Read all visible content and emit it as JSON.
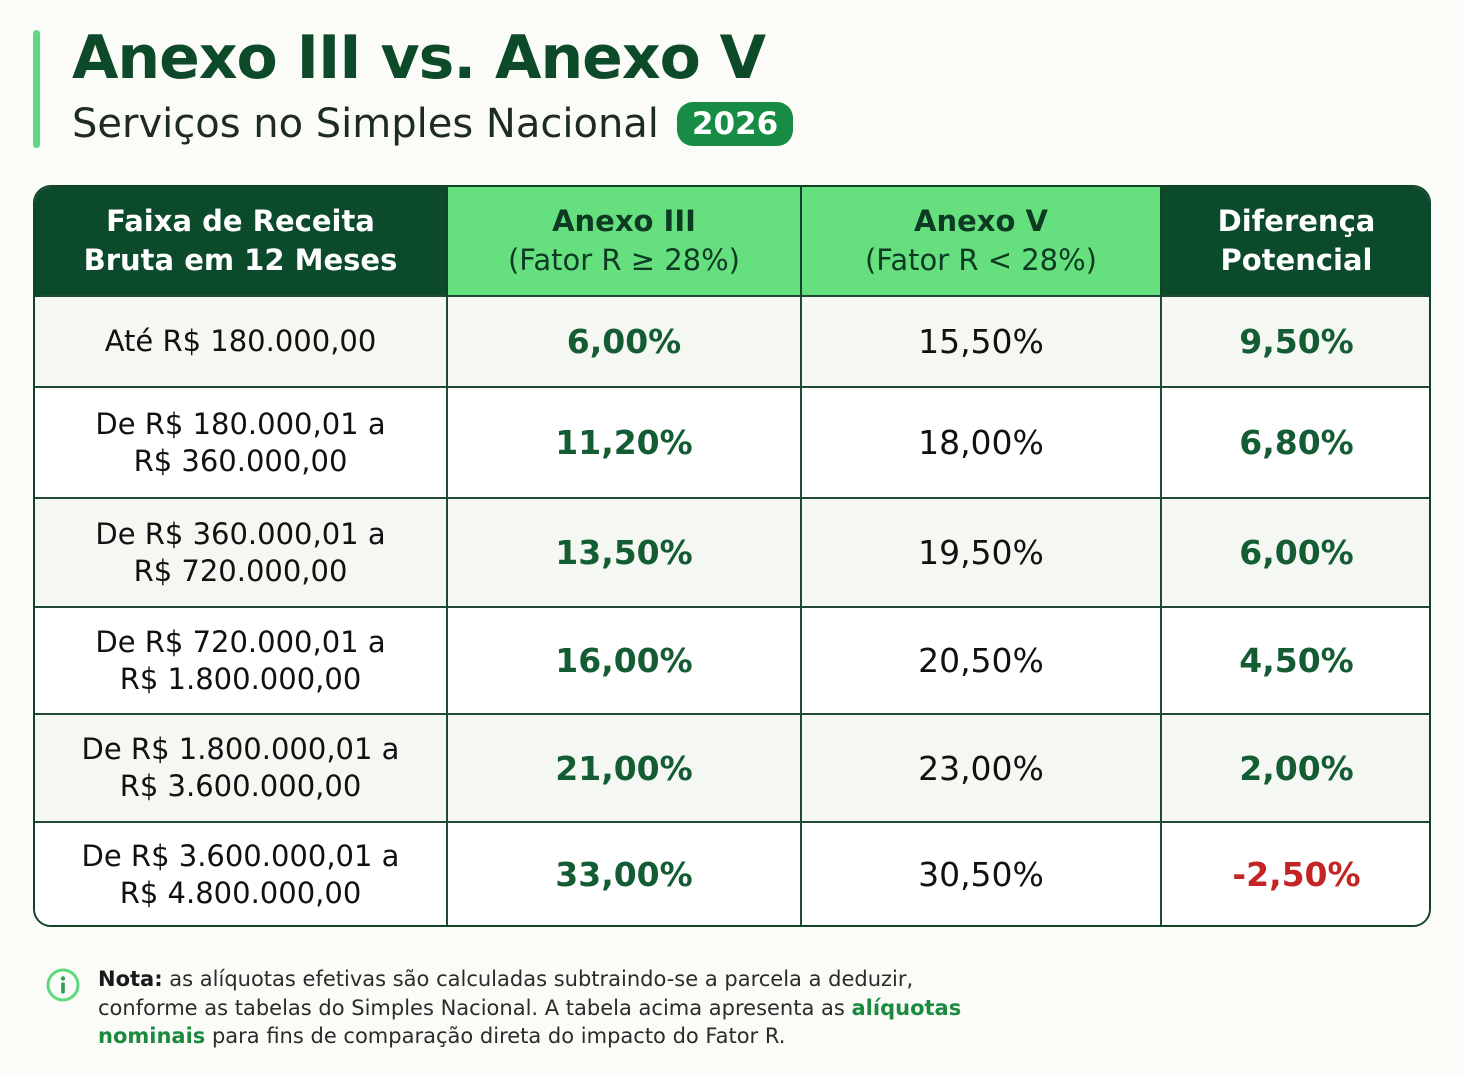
{
  "header": {
    "title": "Anexo III vs. Anexo V",
    "subtitle": "Serviços no Simples Nacional",
    "year_badge": "2026"
  },
  "colors": {
    "dark_green": "#0b4a2b",
    "light_green": "#66e07f",
    "value_green": "#145c33",
    "negative_red": "#c42424",
    "badge_green": "#178c45"
  },
  "table": {
    "headers": {
      "range_line1": "Faixa de Receita",
      "range_line2": "Bruta em 12 Meses",
      "anexo3_line1": "Anexo III",
      "anexo3_line2": "(Fator R ≥ 28%)",
      "anexo5_line1": "Anexo V",
      "anexo5_line2": "(Fator R < 28%)",
      "diff_line1": "Diferença",
      "diff_line2": "Potencial"
    },
    "rows": [
      {
        "range_line1": "Até R$ 180.000,00",
        "range_line2": "",
        "anexo3": "6,00%",
        "anexo5": "15,50%",
        "diff": "9,50%"
      },
      {
        "range_line1": "De R$ 180.000,01 a",
        "range_line2": "R$ 360.000,00",
        "anexo3": "11,20%",
        "anexo5": "18,00%",
        "diff": "6,80%"
      },
      {
        "range_line1": "De R$ 360.000,01 a",
        "range_line2": "R$ 720.000,00",
        "anexo3": "13,50%",
        "anexo5": "19,50%",
        "diff": "6,00%"
      },
      {
        "range_line1": "De R$ 720.000,01 a",
        "range_line2": "R$ 1.800.000,00",
        "anexo3": "16,00%",
        "anexo5": "20,50%",
        "diff": "4,50%"
      },
      {
        "range_line1": "De R$ 1.800.000,01 a",
        "range_line2": "R$ 3.600.000,00",
        "anexo3": "21,00%",
        "anexo5": "23,00%",
        "diff": "2,00%"
      },
      {
        "range_line1": "De R$ 3.600.000,01 a",
        "range_line2": "R$ 4.800.000,00",
        "anexo3": "33,00%",
        "anexo5": "30,50%",
        "diff": "-2,50%"
      }
    ]
  },
  "note": {
    "icon": "info-icon",
    "label": "Nota:",
    "text_part1": " as alíquotas efetivas são calculadas subtraindo-se a parcela a deduzir, conforme as tabelas do Simples Nacional. A tabela acima apresenta as ",
    "highlight": "alíquotas nominais",
    "text_part2": " para fins de comparação direta do impacto do Fator R."
  }
}
